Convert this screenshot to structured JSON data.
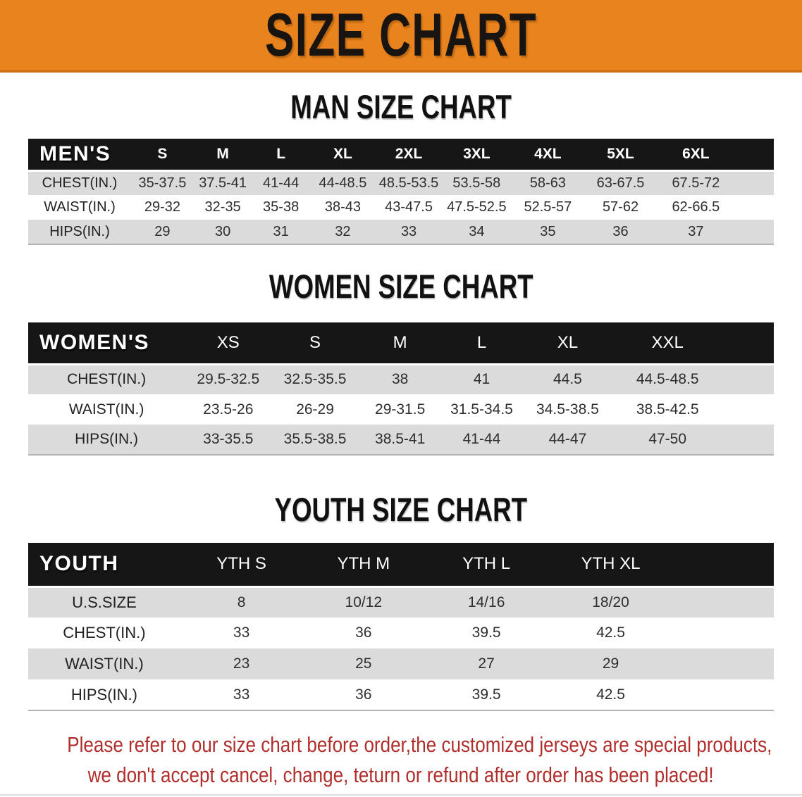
{
  "banner": {
    "title": "SIZE CHART"
  },
  "colors": {
    "banner_orange": "#E8831E",
    "banner_orange_edge": "#C96C12",
    "header_black": "#161616",
    "row_gray": "#DBDBDB",
    "row_white": "#FFFFFF",
    "disclaimer_red": "#B02E2C"
  },
  "sections": [
    {
      "heading": "MAN SIZE CHART",
      "table": {
        "corner": "MEN'S",
        "sizes": [
          "S",
          "M",
          "L",
          "XL",
          "2XL",
          "3XL",
          "4XL",
          "5XL",
          "6XL"
        ],
        "rows": [
          {
            "label": "CHEST(IN.)",
            "values": [
              "35-37.5",
              "37.5-41",
              "41-44",
              "44-48.5",
              "48.5-53.5",
              "53.5-58",
              "58-63",
              "63-67.5",
              "67.5-72"
            ]
          },
          {
            "label": "WAIST(IN.)",
            "values": [
              "29-32",
              "32-35",
              "35-38",
              "38-43",
              "43-47.5",
              "47.5-52.5",
              "52.5-57",
              "57-62",
              "62-66.5"
            ]
          },
          {
            "label": "HIPS(IN.)",
            "values": [
              "29",
              "30",
              "31",
              "32",
              "33",
              "34",
              "35",
              "36",
              "37"
            ]
          }
        ]
      }
    },
    {
      "heading": "WOMEN SIZE CHART",
      "table": {
        "corner": "WOMEN'S",
        "sizes": [
          "XS",
          "S",
          "M",
          "L",
          "XL",
          "XXL"
        ],
        "rows": [
          {
            "label": "CHEST(IN.)",
            "values": [
              "29.5-32.5",
              "32.5-35.5",
              "38",
              "41",
              "44.5",
              "44.5-48.5"
            ]
          },
          {
            "label": "WAIST(IN.)",
            "values": [
              "23.5-26",
              "26-29",
              "29-31.5",
              "31.5-34.5",
              "34.5-38.5",
              "38.5-42.5"
            ]
          },
          {
            "label": "HIPS(IN.)",
            "values": [
              "33-35.5",
              "35.5-38.5",
              "38.5-41",
              "41-44",
              "44-47",
              "47-50"
            ]
          }
        ]
      }
    },
    {
      "heading": "YOUTH SIZE CHART",
      "table": {
        "corner": "YOUTH",
        "sizes": [
          "YTH S",
          "YTH M",
          "YTH L",
          "YTH XL"
        ],
        "rows": [
          {
            "label": "U.S.SIZE",
            "values": [
              "8",
              "10/12",
              "14/16",
              "18/20"
            ]
          },
          {
            "label": "CHEST(IN.)",
            "values": [
              "33",
              "36",
              "39.5",
              "42.5"
            ]
          },
          {
            "label": "WAIST(IN.)",
            "values": [
              "23",
              "25",
              "27",
              "29"
            ]
          },
          {
            "label": "HIPS(IN.)",
            "values": [
              "33",
              "36",
              "39.5",
              "42.5"
            ]
          }
        ]
      }
    }
  ],
  "disclaimer": {
    "line1": "Please refer to our size chart before order,the customized jerseys are special products,",
    "line2": "we don't accept cancel, change, teturn or refund after order has been placed!"
  }
}
